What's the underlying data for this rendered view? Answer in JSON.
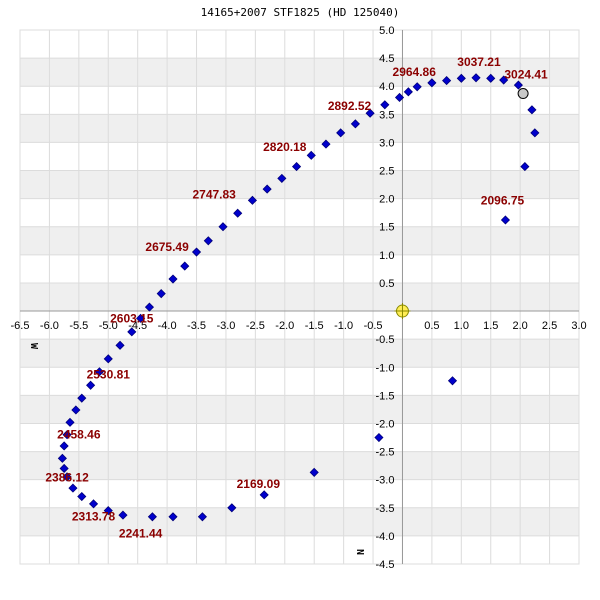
{
  "chart_data": {
    "type": "scatter",
    "title": "14165+2007 STF1825 (HD 125040)",
    "xlim": [
      -6.5,
      3.0
    ],
    "ylim": [
      -4.5,
      5.0
    ],
    "x_ticks": [
      -6.5,
      -6.0,
      -5.5,
      -5.0,
      -4.5,
      -4.0,
      -3.5,
      -3.0,
      -2.5,
      -2.0,
      -1.5,
      -1.0,
      -0.5,
      0.5,
      1.0,
      1.5,
      2.0,
      2.5,
      3.0
    ],
    "x_tick_labels": [
      "-6.5",
      "-6.0",
      "-5.5",
      "-5.0",
      "-4.5",
      "-4.0",
      "-3.5",
      "-3.0",
      "-2.5",
      "-2.0",
      "-1.5",
      "-1.0",
      "-0.5",
      "0.5",
      "1.0",
      "1.5",
      "2.0",
      "2.5",
      "3.0"
    ],
    "y_ticks": [
      5.0,
      4.5,
      4.0,
      3.5,
      3.0,
      2.5,
      2.0,
      1.5,
      1.0,
      0.5,
      -0.5,
      -1.0,
      -1.5,
      -2.0,
      -2.5,
      -3.0,
      -3.5,
      -4.0,
      -4.5
    ],
    "y_tick_labels": [
      "5.0",
      "4.5",
      "4.0",
      "3.5",
      "3.0",
      "2.5",
      "2.0",
      "1.5",
      "1.0",
      "0.5",
      "-0.5",
      "-1.0",
      "-1.5",
      "-2.0",
      "-2.5",
      "-3.0",
      "-3.5",
      "-4.0",
      "-4.5"
    ],
    "x_direction_label": "W",
    "y_direction_label": "N",
    "grid": true,
    "alternating_row_bands": true,
    "colors": {
      "points": "#0000cc",
      "point_stroke": "#00007a",
      "annotation": "#8b0000",
      "grid": "#dcdcdc",
      "band": "#efefef",
      "primary_fill": "#ffee55",
      "primary_stroke": "#888800",
      "current_fill": "#c8c8c8"
    },
    "primary": {
      "x": 0.0,
      "y": 0.0
    },
    "current_position": {
      "x": 2.05,
      "y": 3.87
    },
    "series": [
      {
        "x": [
          -0.05,
          0.1,
          0.25,
          0.5,
          0.75,
          1.0,
          1.25,
          1.5,
          1.72,
          1.97,
          2.2,
          2.25,
          2.08,
          1.75,
          -0.3,
          -0.55,
          -0.8,
          -1.05,
          -1.3,
          -1.55,
          -1.8,
          -2.05,
          -2.3,
          -2.55,
          -2.8,
          -3.05,
          -3.3,
          -3.5,
          -3.7,
          -3.9,
          -4.1,
          -4.3,
          -4.45,
          -4.6,
          -4.8,
          -5.0,
          -5.15,
          -5.3,
          -5.45,
          -5.55,
          -5.65,
          -5.7,
          -5.75,
          -5.78,
          -5.75,
          -5.7,
          -5.6,
          -5.45,
          -5.25,
          -5.0,
          -4.75,
          -4.25,
          -3.9,
          -3.4,
          -2.9,
          -2.35,
          -1.5,
          -0.4,
          0.85
        ],
        "y": [
          3.8,
          3.9,
          3.99,
          4.06,
          4.1,
          4.14,
          4.15,
          4.14,
          4.11,
          4.02,
          3.58,
          3.17,
          2.57,
          1.62,
          3.67,
          3.52,
          3.33,
          3.17,
          2.97,
          2.77,
          2.57,
          2.36,
          2.17,
          1.97,
          1.74,
          1.5,
          1.25,
          1.05,
          0.8,
          0.57,
          0.31,
          0.07,
          -0.13,
          -0.37,
          -0.61,
          -0.85,
          -1.08,
          -1.32,
          -1.55,
          -1.76,
          -1.98,
          -2.2,
          -2.4,
          -2.62,
          -2.8,
          -2.95,
          -3.15,
          -3.3,
          -3.43,
          -3.55,
          -3.63,
          -3.66,
          -3.66,
          -3.66,
          -3.5,
          -3.27,
          -2.87,
          -2.25,
          -1.24
        ]
      }
    ],
    "annotations": [
      {
        "text": "3037.21",
        "x": 1.3,
        "y": 4.36
      },
      {
        "text": "2964.86",
        "x": 0.2,
        "y": 4.18
      },
      {
        "text": "3024.41",
        "x": 2.1,
        "y": 4.14
      },
      {
        "text": "2892.52",
        "x": -0.9,
        "y": 3.58
      },
      {
        "text": "2820.18",
        "x": -2.0,
        "y": 2.85
      },
      {
        "text": "2747.83",
        "x": -3.2,
        "y": 2.0
      },
      {
        "text": "2096.75",
        "x": 1.7,
        "y": 1.9
      },
      {
        "text": "2675.49",
        "x": -4.0,
        "y": 1.07
      },
      {
        "text": "2603.15",
        "x": -4.6,
        "y": -0.2
      },
      {
        "text": "2530.81",
        "x": -5.0,
        "y": -1.2
      },
      {
        "text": "2458.46",
        "x": -5.5,
        "y": -2.27
      },
      {
        "text": "2386.12",
        "x": -5.7,
        "y": -3.03
      },
      {
        "text": "2169.09",
        "x": -2.45,
        "y": -3.15
      },
      {
        "text": "2313.78",
        "x": -5.25,
        "y": -3.73
      },
      {
        "text": "2241.44",
        "x": -4.45,
        "y": -4.03
      }
    ]
  }
}
